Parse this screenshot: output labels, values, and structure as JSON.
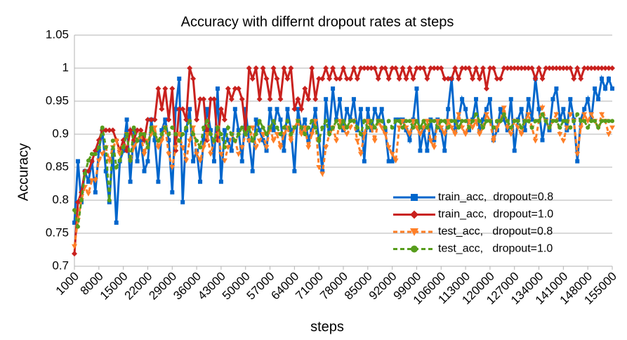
{
  "chart_data": {
    "type": "line",
    "title": "Accuracy with differnt dropout rates at steps",
    "x_label": "steps",
    "y_label": "Accuracy",
    "x": [
      1000,
      2000,
      3000,
      4000,
      5000,
      6000,
      7000,
      8000,
      9000,
      10000,
      11000,
      12000,
      13000,
      14000,
      15000,
      16000,
      17000,
      18000,
      19000,
      20000,
      21000,
      22000,
      23000,
      24000,
      25000,
      26000,
      27000,
      28000,
      29000,
      30000,
      31000,
      32000,
      33000,
      34000,
      35000,
      36000,
      37000,
      38000,
      39000,
      40000,
      41000,
      42000,
      43000,
      44000,
      45000,
      46000,
      47000,
      48000,
      49000,
      50000,
      51000,
      52000,
      53000,
      54000,
      55000,
      56000,
      57000,
      58000,
      59000,
      60000,
      61000,
      62000,
      63000,
      64000,
      65000,
      66000,
      67000,
      68000,
      69000,
      70000,
      71000,
      72000,
      73000,
      74000,
      75000,
      76000,
      77000,
      78000,
      79000,
      80000,
      81000,
      82000,
      83000,
      84000,
      85000,
      86000,
      87000,
      88000,
      89000,
      90000,
      91000,
      92000,
      93000,
      94000,
      95000,
      96000,
      97000,
      98000,
      99000,
      100000,
      101000,
      102000,
      103000,
      104000,
      105000,
      106000,
      107000,
      108000,
      109000,
      110000,
      111000,
      112000,
      113000,
      114000,
      115000,
      116000,
      117000,
      118000,
      119000,
      120000,
      121000,
      122000,
      123000,
      124000,
      125000,
      126000,
      127000,
      128000,
      129000,
      130000,
      131000,
      132000,
      133000,
      134000,
      135000,
      136000,
      137000,
      138000,
      139000,
      140000,
      141000,
      142000,
      143000,
      144000,
      145000,
      146000,
      147000,
      148000,
      149000,
      150000,
      151000,
      152000,
      153000,
      154000,
      155000
    ],
    "xlim": [
      1000,
      155000
    ],
    "xticks": [
      1000,
      8000,
      15000,
      22000,
      29000,
      36000,
      43000,
      50000,
      57000,
      64000,
      71000,
      78000,
      85000,
      92000,
      99000,
      106000,
      113000,
      120000,
      127000,
      134000,
      141000,
      148000,
      155000
    ],
    "ylim": [
      0.7,
      1.05
    ],
    "yticks": [
      0.7,
      0.75,
      0.8,
      0.85,
      0.9,
      0.95,
      1,
      1.05
    ],
    "legend": "lower right",
    "series": [
      {
        "name": "train_acc,  dropout=0.8",
        "color": "#0066cc",
        "marker": "square",
        "dashed": false,
        "values": [
          0.766,
          0.859,
          0.797,
          0.844,
          0.828,
          0.859,
          0.812,
          0.875,
          0.906,
          0.844,
          0.797,
          0.875,
          0.766,
          0.859,
          0.875,
          0.922,
          0.828,
          0.906,
          0.859,
          0.891,
          0.844,
          0.859,
          0.922,
          0.891,
          0.828,
          0.906,
          0.922,
          0.891,
          0.812,
          0.938,
          0.984,
          0.797,
          0.906,
          0.938,
          0.859,
          0.875,
          0.828,
          0.891,
          0.938,
          0.906,
          0.859,
          0.969,
          0.828,
          0.906,
          0.891,
          0.875,
          0.938,
          0.906,
          0.859,
          0.938,
          0.891,
          0.844,
          0.922,
          0.906,
          0.891,
          0.875,
          0.938,
          0.906,
          0.938,
          0.922,
          0.875,
          0.938,
          0.906,
          0.844,
          0.938,
          0.906,
          0.922,
          0.891,
          0.906,
          0.938,
          0.891,
          0.844,
          0.953,
          0.906,
          0.969,
          0.922,
          0.953,
          0.906,
          0.938,
          0.922,
          0.953,
          0.906,
          0.938,
          0.859,
          0.938,
          0.906,
          0.938,
          0.922,
          0.938,
          0.906,
          0.859,
          0.859,
          0.922,
          0.922,
          0.922,
          0.906,
          0.891,
          0.922,
          0.969,
          0.875,
          0.906,
          0.875,
          0.922,
          0.891,
          0.922,
          0.906,
          0.875,
          0.938,
          0.984,
          0.906,
          0.922,
          0.953,
          0.938,
          0.906,
          0.922,
          0.953,
          0.906,
          0.922,
          0.938,
          0.953,
          0.891,
          0.906,
          0.938,
          0.922,
          0.906,
          0.953,
          0.875,
          0.922,
          0.938,
          0.906,
          0.953,
          0.922,
          0.984,
          0.938,
          0.891,
          0.922,
          0.906,
          0.953,
          0.969,
          0.922,
          0.938,
          0.906,
          0.953,
          0.922,
          0.859,
          0.922,
          0.938,
          0.953,
          0.922,
          0.969,
          0.953,
          0.984,
          0.969,
          0.984,
          0.969
        ]
      },
      {
        "name": "train_acc,  dropout=1.0",
        "color": "#c9211e",
        "marker": "diamond",
        "dashed": false,
        "values": [
          0.719,
          0.797,
          0.812,
          0.844,
          0.844,
          0.859,
          0.875,
          0.891,
          0.906,
          0.906,
          0.906,
          0.906,
          0.891,
          0.875,
          0.891,
          0.875,
          0.906,
          0.891,
          0.906,
          0.906,
          0.891,
          0.922,
          0.922,
          0.922,
          0.969,
          0.938,
          0.969,
          0.922,
          0.969,
          0.875,
          0.938,
          0.938,
          0.922,
          1.0,
          0.984,
          0.922,
          0.953,
          0.953,
          0.891,
          0.953,
          0.953,
          0.891,
          0.938,
          0.922,
          0.969,
          0.953,
          0.969,
          0.969,
          0.953,
          0.906,
          1.0,
          0.984,
          1.0,
          0.953,
          1.0,
          0.984,
          0.953,
          1.0,
          0.984,
          0.953,
          1.0,
          0.984,
          1.0,
          0.938,
          0.953,
          0.938,
          0.969,
          0.953,
          1.0,
          0.953,
          0.984,
          0.984,
          1.0,
          0.984,
          1.0,
          0.984,
          0.984,
          1.0,
          0.984,
          0.984,
          1.0,
          0.984,
          1.0,
          1.0,
          1.0,
          1.0,
          1.0,
          0.984,
          1.0,
          1.0,
          0.984,
          1.0,
          1.0,
          0.984,
          1.0,
          0.984,
          1.0,
          0.984,
          1.0,
          1.0,
          1.0,
          0.984,
          1.0,
          1.0,
          1.0,
          1.0,
          0.984,
          0.984,
          0.984,
          1.0,
          0.984,
          1.0,
          1.0,
          1.0,
          0.984,
          1.0,
          0.984,
          1.0,
          0.969,
          1.0,
          1.0,
          0.984,
          0.984,
          1.0,
          1.0,
          1.0,
          1.0,
          1.0,
          1.0,
          1.0,
          1.0,
          1.0,
          0.984,
          1.0,
          0.984,
          1.0,
          1.0,
          1.0,
          1.0,
          1.0,
          1.0,
          1.0,
          1.0,
          0.984,
          1.0,
          0.984,
          1.0,
          1.0,
          1.0,
          1.0,
          1.0,
          1.0,
          1.0,
          1.0,
          1.0
        ]
      },
      {
        "name": "test_acc,   dropout=0.8",
        "color": "#ff7f27",
        "marker": "triangle-down",
        "dashed": true,
        "values": [
          0.73,
          0.77,
          0.8,
          0.82,
          0.81,
          0.83,
          0.83,
          0.86,
          0.87,
          0.88,
          0.86,
          0.88,
          0.89,
          0.87,
          0.88,
          0.9,
          0.86,
          0.88,
          0.89,
          0.9,
          0.87,
          0.89,
          0.9,
          0.91,
          0.88,
          0.89,
          0.91,
          0.87,
          0.85,
          0.88,
          0.9,
          0.88,
          0.86,
          0.89,
          0.91,
          0.87,
          0.86,
          0.88,
          0.9,
          0.87,
          0.89,
          0.91,
          0.87,
          0.86,
          0.88,
          0.9,
          0.89,
          0.87,
          0.88,
          0.9,
          0.89,
          0.91,
          0.88,
          0.89,
          0.9,
          0.88,
          0.91,
          0.89,
          0.9,
          0.88,
          0.9,
          0.91,
          0.89,
          0.91,
          0.92,
          0.9,
          0.91,
          0.88,
          0.9,
          0.92,
          0.85,
          0.84,
          0.88,
          0.9,
          0.91,
          0.89,
          0.92,
          0.91,
          0.9,
          0.91,
          0.92,
          0.89,
          0.87,
          0.9,
          0.92,
          0.91,
          0.89,
          0.92,
          0.91,
          0.9,
          0.88,
          0.87,
          0.86,
          0.91,
          0.92,
          0.91,
          0.9,
          0.92,
          0.91,
          0.9,
          0.91,
          0.92,
          0.89,
          0.88,
          0.92,
          0.91,
          0.9,
          0.92,
          0.91,
          0.9,
          0.93,
          0.91,
          0.9,
          0.92,
          0.91,
          0.92,
          0.9,
          0.91,
          0.93,
          0.92,
          0.89,
          0.91,
          0.92,
          0.94,
          0.91,
          0.9,
          0.92,
          0.91,
          0.9,
          0.92,
          0.93,
          0.91,
          0.89,
          0.92,
          0.94,
          0.92,
          0.91,
          0.92,
          0.93,
          0.9,
          0.89,
          0.91,
          0.93,
          0.92,
          0.87,
          0.91,
          0.93,
          0.92,
          0.93,
          0.92,
          0.91,
          0.93,
          0.92,
          0.9,
          0.91
        ]
      },
      {
        "name": "test_acc,   dropout=1.0",
        "color": "#579d1c",
        "marker": "circle",
        "dashed": true,
        "values": [
          0.785,
          0.76,
          0.8,
          0.84,
          0.86,
          0.87,
          0.87,
          0.88,
          0.91,
          0.88,
          0.8,
          0.89,
          0.85,
          0.86,
          0.88,
          0.9,
          0.86,
          0.91,
          0.89,
          0.9,
          0.9,
          0.88,
          0.91,
          0.9,
          0.89,
          0.9,
          0.91,
          0.9,
          0.91,
          0.9,
          0.89,
          0.9,
          0.91,
          0.92,
          0.9,
          0.89,
          0.88,
          0.91,
          0.92,
          0.9,
          0.89,
          0.91,
          0.9,
          0.88,
          0.91,
          0.9,
          0.89,
          0.9,
          0.91,
          0.9,
          0.91,
          0.89,
          0.9,
          0.92,
          0.91,
          0.9,
          0.91,
          0.92,
          0.91,
          0.9,
          0.91,
          0.92,
          0.9,
          0.91,
          0.92,
          0.91,
          0.9,
          0.91,
          0.92,
          0.91,
          0.89,
          0.91,
          0.92,
          0.9,
          0.91,
          0.92,
          0.91,
          0.92,
          0.91,
          0.92,
          0.92,
          0.91,
          0.9,
          0.92,
          0.91,
          0.92,
          0.91,
          0.92,
          0.92,
          0.91,
          0.92,
          0.91,
          0.92,
          0.92,
          0.91,
          0.92,
          0.92,
          0.91,
          0.92,
          0.91,
          0.92,
          0.91,
          0.92,
          0.92,
          0.91,
          0.92,
          0.92,
          0.91,
          0.92,
          0.92,
          0.91,
          0.92,
          0.92,
          0.91,
          0.92,
          0.93,
          0.92,
          0.91,
          0.92,
          0.92,
          0.91,
          0.92,
          0.92,
          0.93,
          0.92,
          0.91,
          0.92,
          0.92,
          0.91,
          0.92,
          0.92,
          0.91,
          0.92,
          0.92,
          0.93,
          0.92,
          0.91,
          0.92,
          0.92,
          0.91,
          0.92,
          0.92,
          0.91,
          0.92,
          0.93,
          0.92,
          0.92,
          0.91,
          0.92,
          0.92,
          0.91,
          0.92,
          0.92,
          0.92,
          0.92
        ]
      }
    ]
  }
}
